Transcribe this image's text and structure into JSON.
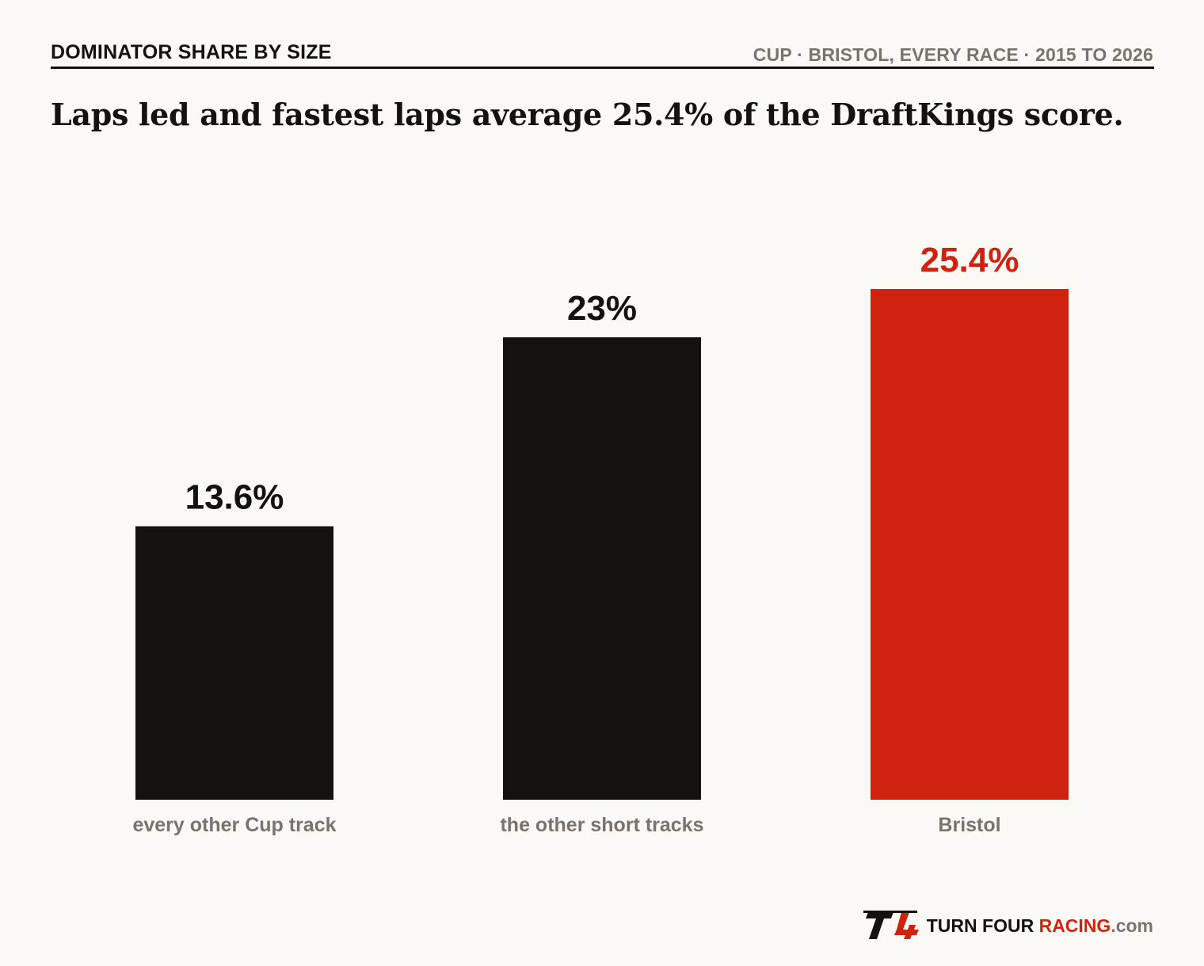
{
  "header": {
    "kicker": "DOMINATOR SHARE BY SIZE",
    "source": "CUP · BRISTOL, EVERY RACE · 2015 TO 2026"
  },
  "headline": "Laps led and fastest laps average 25.4% of the DraftKings score.",
  "colors": {
    "bar_default": "#141110",
    "bar_highlight": "#d0230f",
    "category_label": "#7a726d",
    "background": "#faf9f6"
  },
  "chart_data": {
    "type": "bar",
    "title": "",
    "xlabel": "",
    "ylabel": "",
    "ylim": [
      0,
      25.4
    ],
    "grid": false,
    "categories": [
      "every other Cup track",
      "the other short tracks",
      "Bristol"
    ],
    "values": [
      13.6,
      23,
      25.4
    ],
    "value_labels": [
      "13.6%",
      "23%",
      "25.4%"
    ],
    "highlight": [
      false,
      false,
      true
    ]
  },
  "footer": {
    "logo_mark": "T4",
    "brand_part1": "TURN FOUR ",
    "brand_part2": "RACING",
    "brand_part3": ".com"
  }
}
